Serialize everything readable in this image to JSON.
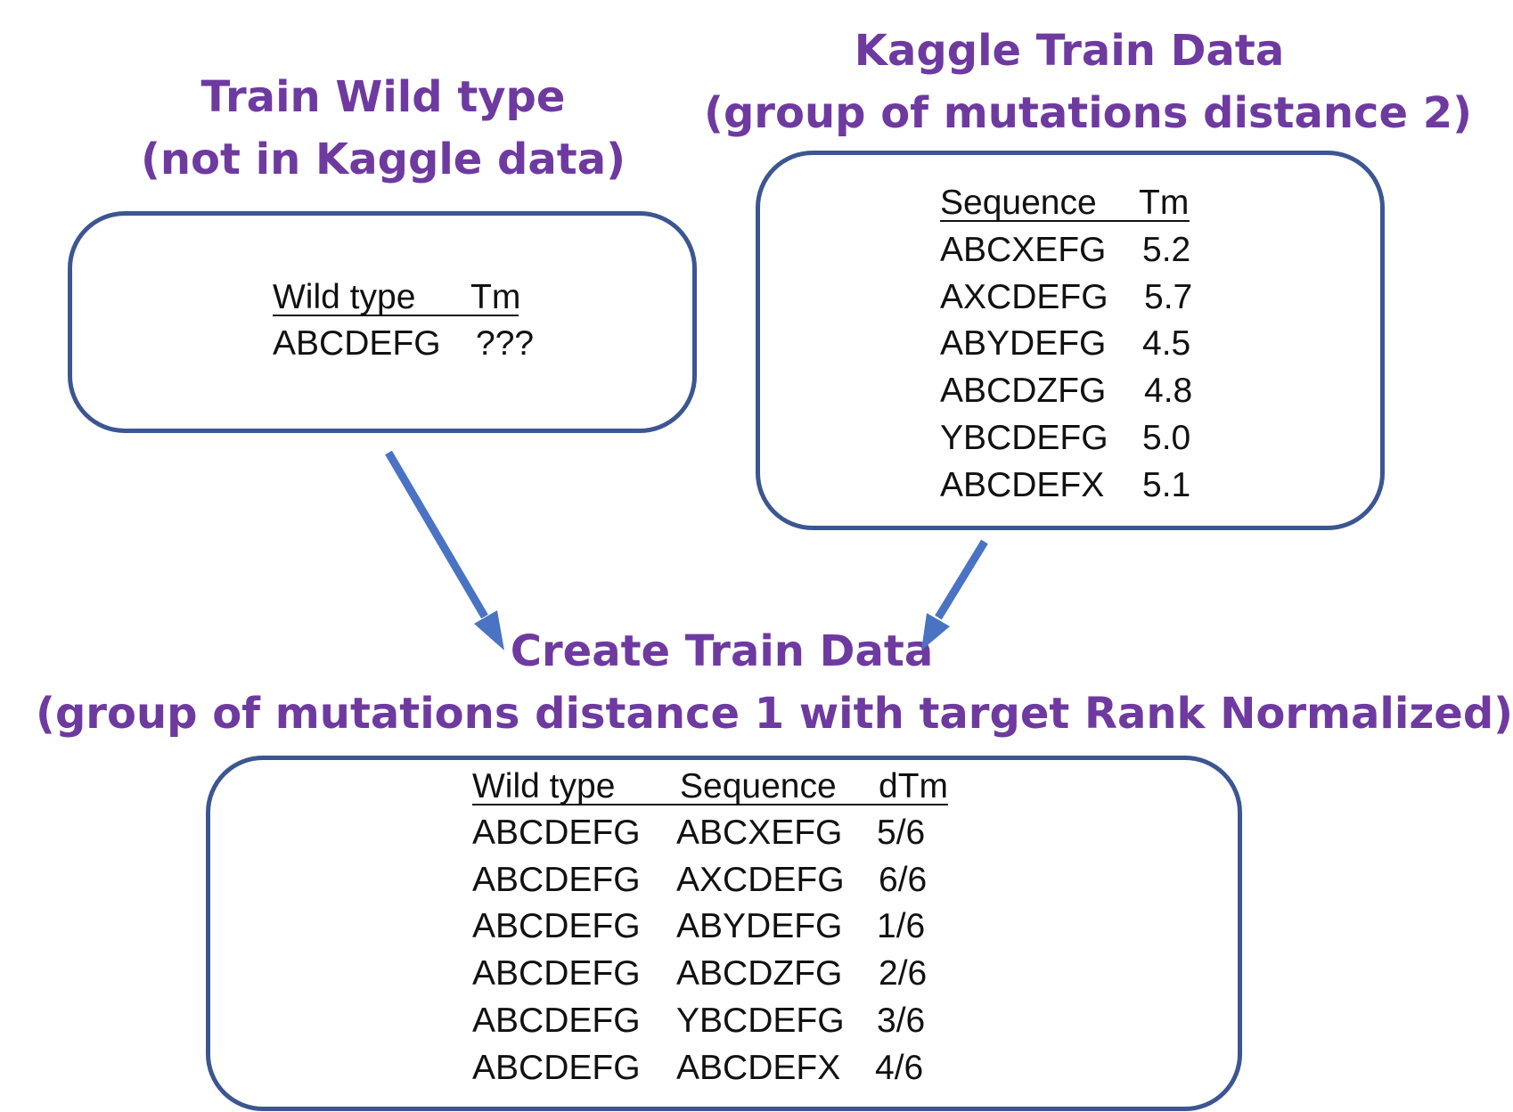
{
  "train_wild_type": {
    "title_line1": "Train Wild type",
    "title_line2": "(not in Kaggle data)",
    "table": {
      "headers": [
        "Wild type",
        "Tm"
      ],
      "rows": [
        [
          "ABCDEFG",
          "???"
        ]
      ]
    }
  },
  "kaggle_train_data": {
    "title_line1": "Kaggle Train Data",
    "title_line2": "(group of mutations distance 2)",
    "table": {
      "headers": [
        "Sequence",
        "Tm"
      ],
      "rows": [
        [
          "ABCXEFG",
          "5.2"
        ],
        [
          "AXCDEFG",
          "5.7"
        ],
        [
          "ABYDEFG",
          "4.5"
        ],
        [
          "ABCDZFG",
          "4.8"
        ],
        [
          "YBCDEFG",
          "5.0"
        ],
        [
          "ABCDEFX",
          "5.1"
        ]
      ]
    }
  },
  "create_train_data": {
    "title_line1": "Create Train Data",
    "title_line2": "(group of mutations distance 1 with target Rank Normalized)",
    "table": {
      "headers": [
        "Wild type",
        "Sequence",
        "dTm"
      ],
      "rows": [
        [
          "ABCDEFG",
          "ABCXEFG",
          "5/6"
        ],
        [
          "ABCDEFG",
          "AXCDEFG",
          "6/6"
        ],
        [
          "ABCDEFG",
          "ABYDEFG",
          "1/6"
        ],
        [
          "ABCDEFG",
          "ABCDZFG",
          "2/6"
        ],
        [
          "ABCDEFG",
          "YBCDEFG",
          "3/6"
        ],
        [
          "ABCDEFG",
          "ABCDEFX",
          "4/6"
        ]
      ]
    }
  },
  "colors": {
    "heading": "#6e3aa0",
    "box_border": "#3b5690",
    "arrow": "#4a73c4",
    "text": "#111111"
  }
}
